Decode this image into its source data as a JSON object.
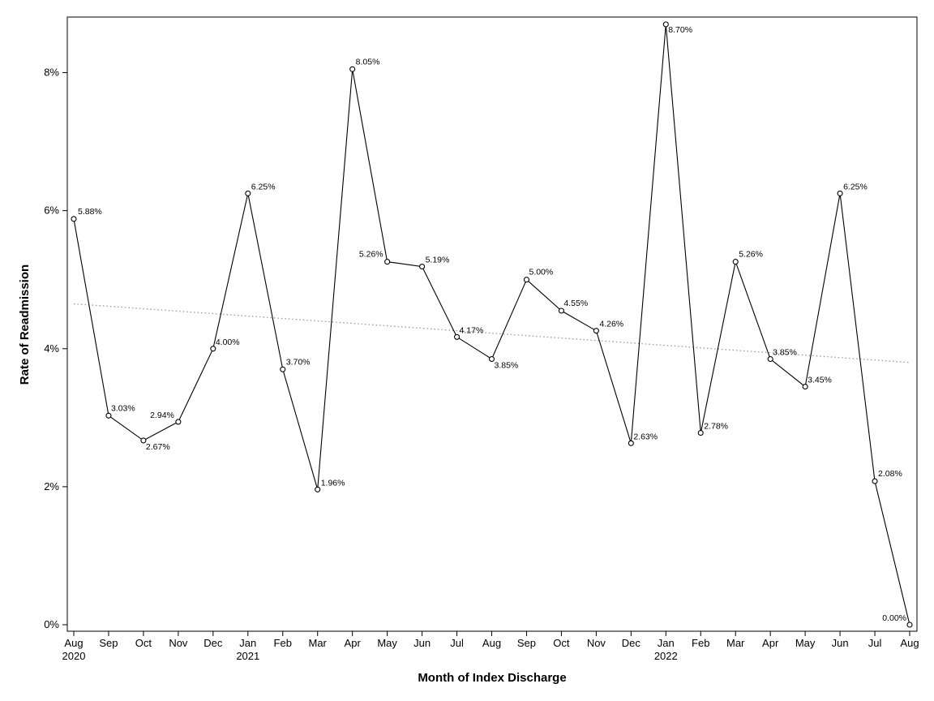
{
  "chart_data": {
    "type": "line",
    "xlabel": "Month of Index Discharge",
    "ylabel": "Rate of Readmission",
    "ylim": [
      0,
      8.8
    ],
    "y_unit": "%",
    "y_ticks": [
      "0%",
      "2%",
      "4%",
      "6%",
      "8%"
    ],
    "grid": false,
    "legend": "none",
    "categories": [
      "Aug",
      "Sep",
      "Oct",
      "Nov",
      "Dec",
      "Jan",
      "Feb",
      "Mar",
      "Apr",
      "May",
      "Jun",
      "Jul",
      "Aug",
      "Sep",
      "Oct",
      "Nov",
      "Dec",
      "Jan",
      "Feb",
      "Mar",
      "Apr",
      "May",
      "Jun",
      "Jul",
      "Aug"
    ],
    "year_labels": [
      {
        "index": 0,
        "text": "2020"
      },
      {
        "index": 5,
        "text": "2021"
      },
      {
        "index": 17,
        "text": "2022"
      }
    ],
    "values": [
      5.88,
      3.03,
      2.67,
      2.94,
      4.0,
      6.25,
      3.7,
      1.96,
      8.05,
      5.26,
      5.19,
      4.17,
      3.85,
      5.0,
      4.55,
      4.26,
      2.63,
      8.7,
      2.78,
      5.26,
      3.85,
      3.45,
      6.25,
      2.08,
      0.0
    ],
    "data_labels": [
      "5.88%",
      "3.03%",
      "2.67%",
      "2.94%",
      "4.00%",
      "6.25%",
      "3.70%",
      "1.96%",
      "8.05%",
      "5.26%",
      "5.19%",
      "4.17%",
      "3.85%",
      "5.00%",
      "4.55%",
      "4.26%",
      "2.63%",
      "8.70%",
      "2.78%",
      "5.26%",
      "3.85%",
      "3.45%",
      "6.25%",
      "2.08%",
      "0.00%"
    ],
    "trend_line": {
      "start": 4.65,
      "end": 3.8
    },
    "colors": {
      "line": "#000000",
      "trend": "#999999",
      "axis": "#000000"
    }
  }
}
